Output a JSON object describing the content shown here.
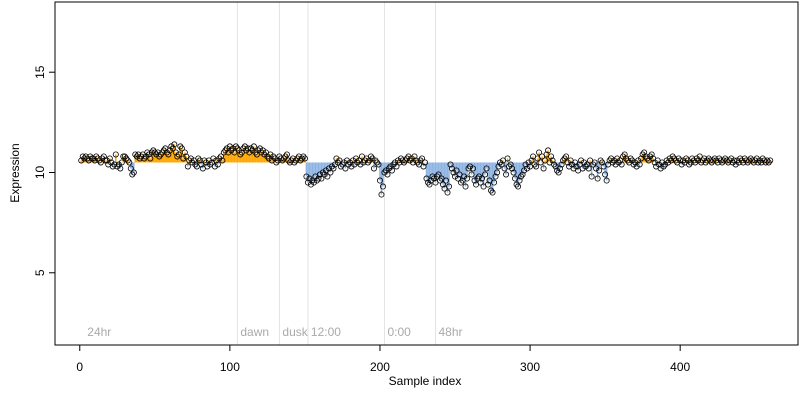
{
  "chart_data": {
    "type": "scatter",
    "x_label": "Sample index",
    "y_label": "Expression",
    "xlim": [
      -16.5,
      478.5
    ],
    "ylim": [
      1.4,
      18.5
    ],
    "xticks": [
      0,
      100,
      200,
      300,
      400
    ],
    "yticks": [
      5,
      10,
      15
    ],
    "baseline": 10.5,
    "above_color": "#ffa500",
    "below_color": "#8db3e2",
    "point_color": "#000000",
    "annotations": [
      {
        "x": 3,
        "label": "24hr"
      },
      {
        "x": 105,
        "label": "dawn"
      },
      {
        "x": 133,
        "label": "dusk"
      },
      {
        "x": 152,
        "label": "12:00"
      },
      {
        "x": 203,
        "label": "0:00"
      },
      {
        "x": 237,
        "label": "48hr"
      }
    ],
    "annotation_y": 2,
    "values": [
      10.6,
      10.8,
      10.7,
      10.8,
      10.7,
      10.6,
      10.8,
      10.7,
      10.7,
      10.6,
      10.8,
      10.7,
      10.6,
      10.5,
      10.7,
      10.8,
      10.6,
      10.6,
      10.4,
      10.7,
      10.5,
      10.3,
      10.4,
      10.9,
      10.3,
      10.4,
      10.2,
      10.5,
      10.8,
      10.8,
      10.7,
      10.6,
      10.5,
      10.2,
      9.9,
      10.0,
      10.9,
      10.8,
      10.9,
      10.7,
      10.8,
      10.9,
      10.7,
      10.8,
      11.0,
      10.9,
      10.7,
      11.0,
      11.1,
      11.0,
      10.9,
      11.0,
      10.8,
      10.9,
      11.0,
      11.1,
      11.2,
      11.0,
      10.9,
      11.1,
      11.3,
      11.2,
      11.4,
      11.0,
      10.8,
      10.9,
      11.3,
      11.2,
      10.7,
      11.0,
      10.8,
      10.3,
      10.6,
      10.7,
      10.5,
      10.6,
      10.4,
      10.3,
      10.7,
      10.6,
      10.4,
      10.2,
      10.6,
      10.5,
      10.3,
      10.6,
      10.4,
      10.5,
      10.7,
      10.3,
      10.6,
      10.4,
      10.7,
      10.8,
      10.6,
      11.0,
      11.1,
      11.2,
      11.0,
      11.3,
      11.1,
      11.2,
      11.0,
      11.3,
      11.2,
      11.1,
      10.9,
      11.0,
      11.2,
      11.3,
      11.1,
      11.2,
      11.0,
      11.2,
      11.1,
      11.3,
      11.0,
      10.9,
      11.1,
      11.2,
      11.0,
      11.1,
      10.9,
      11.0,
      10.8,
      10.7,
      10.9,
      10.6,
      10.8,
      10.7,
      10.5,
      10.6,
      10.8,
      10.7,
      10.6,
      10.7,
      10.8,
      10.9,
      10.6,
      10.5,
      10.6,
      10.7,
      10.5,
      10.6,
      10.7,
      10.8,
      10.6,
      10.7,
      10.8,
      10.7,
      9.8,
      9.5,
      9.7,
      9.4,
      9.6,
      9.5,
      9.8,
      9.6,
      9.7,
      9.9,
      9.7,
      10.0,
      9.9,
      10.1,
      9.8,
      10.2,
      10.0,
      10.3,
      10.2,
      10.4,
      10.7,
      10.5,
      10.6,
      10.3,
      10.4,
      10.5,
      10.2,
      10.6,
      10.4,
      10.5,
      10.3,
      10.6,
      10.4,
      10.7,
      10.5,
      10.6,
      10.4,
      10.8,
      10.5,
      10.6,
      10.7,
      10.5,
      10.6,
      10.8,
      10.7,
      10.2,
      10.6,
      10.5,
      10.4,
      9.6,
      8.9,
      9.3,
      10.0,
      10.1,
      9.9,
      10.2,
      10.3,
      10.1,
      10.4,
      10.5,
      10.3,
      10.6,
      10.5,
      10.7,
      10.6,
      10.5,
      10.6,
      10.7,
      10.8,
      10.6,
      10.7,
      10.5,
      10.8,
      10.6,
      10.5,
      10.4,
      10.6,
      10.7,
      10.3,
      10.5,
      9.7,
      9.5,
      9.4,
      9.6,
      9.8,
      9.7,
      9.5,
      9.8,
      9.9,
      9.6,
      9.7,
      9.4,
      9.2,
      9.6,
      9.0,
      9.3,
      10.4,
      10.2,
      10.0,
      9.8,
      10.1,
      9.7,
      9.9,
      9.5,
      9.6,
      9.8,
      9.3,
      9.7,
      10.2,
      10.3,
      9.9,
      10.2,
      9.6,
      9.4,
      9.7,
      9.8,
      9.5,
      9.7,
      9.3,
      9.9,
      10.2,
      9.4,
      9.6,
      9.1,
      9.0,
      9.5,
      9.8,
      10.0,
      10.3,
      10.5,
      10.4,
      10.6,
      10.2,
      9.9,
      10.7,
      10.3,
      10.4,
      10.2,
      10.0,
      9.7,
      9.4,
      9.3,
      9.6,
      9.8,
      9.9,
      10.1,
      10.4,
      10.2,
      10.5,
      10.3,
      10.6,
      10.8,
      10.4,
      10.3,
      10.7,
      11.0,
      10.5,
      10.8,
      10.2,
      10.6,
      10.9,
      11.1,
      10.5,
      10.8,
      10.6,
      10.4,
      10.3,
      10.1,
      10.0,
      10.2,
      10.4,
      10.6,
      10.7,
      10.8,
      10.5,
      10.3,
      10.6,
      10.4,
      10.2,
      10.5,
      10.3,
      10.1,
      10.4,
      10.6,
      10.2,
      10.5,
      10.3,
      10.4,
      10.2,
      10.6,
      9.8,
      10.4,
      10.5,
      10.2,
      9.7,
      10.1,
      10.6,
      10.5,
      10.3,
      9.9,
      9.6,
      10.4,
      10.6,
      10.7,
      10.5,
      10.6,
      10.4,
      10.7,
      10.5,
      10.6,
      10.4,
      10.8,
      10.9,
      10.7,
      10.6,
      10.5,
      10.7,
      10.6,
      10.4,
      10.5,
      10.3,
      10.6,
      10.4,
      10.7,
      10.9,
      11.0,
      10.8,
      10.7,
      10.6,
      10.8,
      10.9,
      10.7,
      10.5,
      10.3,
      10.6,
      10.4,
      10.2,
      10.5,
      10.3,
      10.4,
      10.6,
      10.5,
      10.7,
      10.6,
      10.8,
      10.7,
      10.6,
      10.5,
      10.7,
      10.6,
      10.4,
      10.6,
      10.5,
      10.7,
      10.6,
      10.4,
      10.5,
      10.7,
      10.6,
      10.5,
      10.7,
      10.6,
      10.8,
      10.5,
      10.6,
      10.7,
      10.5,
      10.6,
      10.7,
      10.6,
      10.5,
      10.6,
      10.7,
      10.6,
      10.5,
      10.7,
      10.6,
      10.5,
      10.6,
      10.7,
      10.6,
      10.5,
      10.6,
      10.7,
      10.5,
      10.6,
      10.4,
      10.6,
      10.5,
      10.7,
      10.6,
      10.5,
      10.7,
      10.6,
      10.5,
      10.6,
      10.7,
      10.6,
      10.5,
      10.6,
      10.7,
      10.5,
      10.6,
      10.5,
      10.7,
      10.6,
      10.5,
      10.6,
      10.5,
      10.6
    ]
  }
}
